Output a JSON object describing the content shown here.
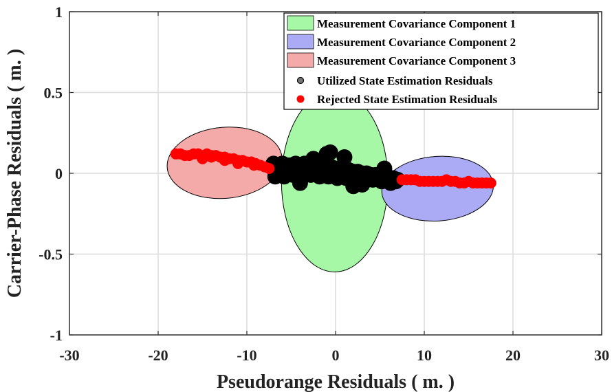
{
  "chart_data": {
    "type": "scatter",
    "title": "",
    "xlabel": "Pseudorange Residuals ( m. )",
    "ylabel": "Carrier-Phase Residuals ( m. )",
    "xlim": [
      -30,
      30
    ],
    "ylim": [
      -1,
      1
    ],
    "xticks": [
      -30,
      -20,
      -10,
      0,
      10,
      20,
      30
    ],
    "yticks": [
      -1,
      -0.5,
      0,
      0.5,
      1
    ],
    "xtick_labels": [
      "-30",
      "-20",
      "-10",
      "0",
      "10",
      "20",
      "30"
    ],
    "ytick_labels": [
      "-1",
      "-0.5",
      "0",
      "0.5",
      "1"
    ],
    "grid": true,
    "legend_position": "top-right",
    "ellipses": [
      {
        "name": "Measurement Covariance Component 1",
        "color": "#a6f7a6",
        "center": [
          -0.1,
          -0.05
        ],
        "semi_axes": [
          6,
          0.56
        ],
        "angle_deg": 0
      },
      {
        "name": "Measurement Covariance Component 2",
        "color": "#aaaaf5",
        "center": [
          11.5,
          -0.095
        ],
        "semi_axes": [
          6.3,
          0.2
        ],
        "angle_deg": -4
      },
      {
        "name": "Measurement Covariance Component 3",
        "color": "#f5aaaa",
        "center": [
          -12.5,
          0.065
        ],
        "semi_axes": [
          6.5,
          0.22
        ],
        "angle_deg": -5
      }
    ],
    "series": [
      {
        "name": "Utilized State Estimation Residuals",
        "marker_color": "#000000",
        "legend_color": "#777777",
        "x": [
          -7,
          -6.5,
          -6,
          -5.5,
          -5,
          -4.5,
          -4,
          -3.5,
          -3,
          -2.5,
          -2,
          -1.5,
          -1,
          -0.5,
          0,
          0.5,
          1,
          1.5,
          2,
          2.5,
          3,
          3.5,
          4,
          4.5,
          5,
          5.5,
          6,
          6.5,
          7,
          -6.8,
          -5.8,
          -4.8,
          -3.8,
          -2.8,
          -1.8,
          -0.8,
          0.2,
          1.2,
          2.2,
          3.2,
          4.2,
          5.2,
          6.2,
          -6.2,
          -5.2,
          -4.2,
          -3.2,
          -2.2,
          -1.2,
          -0.2,
          0.8,
          1.8,
          2.8,
          3.8,
          4.8,
          5.8,
          6.8,
          -1,
          -0.6,
          1,
          -2.5,
          2,
          3,
          -4,
          5.5
        ],
        "y": [
          0.06,
          0.05,
          0.06,
          0.05,
          0.05,
          0.06,
          0.05,
          0.06,
          0.05,
          0.06,
          0.04,
          0.05,
          0.04,
          0.04,
          0.03,
          0.03,
          0.02,
          0.02,
          0.01,
          0.01,
          0.0,
          0.0,
          -0.01,
          -0.01,
          -0.02,
          -0.02,
          -0.03,
          -0.03,
          -0.04,
          -0.02,
          -0.02,
          -0.01,
          -0.02,
          -0.01,
          -0.02,
          -0.02,
          -0.03,
          -0.03,
          -0.04,
          -0.04,
          -0.04,
          -0.05,
          -0.06,
          0.02,
          0.03,
          0.02,
          0.01,
          0.02,
          0.01,
          0.0,
          0.0,
          -0.01,
          -0.02,
          -0.01,
          -0.03,
          -0.04,
          -0.05,
          0.12,
          0.13,
          0.1,
          0.09,
          -0.08,
          -0.07,
          -0.06,
          0.03
        ]
      },
      {
        "name": "Rejected State Estimation Residuals",
        "marker_color": "#ff0000",
        "legend_color": "#ff0000",
        "x": [
          -18,
          -17.5,
          -17,
          -16.5,
          -16,
          -15.5,
          -15,
          -14.5,
          -14,
          -13.5,
          -13,
          -12.5,
          -12,
          -11.5,
          -11,
          -10.5,
          -10,
          -9.5,
          -9,
          -8.5,
          -8,
          -7.5,
          -15,
          -14,
          -12.5,
          -11,
          -9.2,
          7.5,
          8,
          8.5,
          9,
          9.5,
          10,
          10.5,
          11,
          11.5,
          12,
          12.5,
          13,
          13.5,
          14,
          14.5,
          15,
          15.5,
          16,
          16.5,
          17,
          17.5
        ],
        "y": [
          0.12,
          0.12,
          0.11,
          0.11,
          0.12,
          0.12,
          0.11,
          0.12,
          0.11,
          0.11,
          0.1,
          0.1,
          0.09,
          0.09,
          0.08,
          0.08,
          0.07,
          0.07,
          0.06,
          0.05,
          0.04,
          0.03,
          0.09,
          0.1,
          0.08,
          0.06,
          0.05,
          -0.04,
          -0.04,
          -0.04,
          -0.04,
          -0.05,
          -0.05,
          -0.05,
          -0.05,
          -0.05,
          -0.05,
          -0.04,
          -0.05,
          -0.05,
          -0.06,
          -0.06,
          -0.05,
          -0.06,
          -0.06,
          -0.06,
          -0.06,
          -0.06
        ]
      }
    ]
  }
}
